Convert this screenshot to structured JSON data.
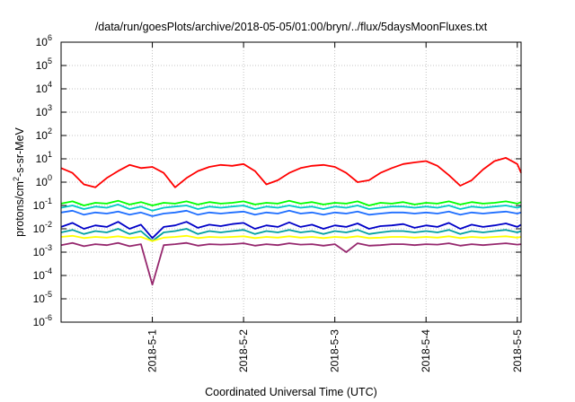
{
  "chart_data": {
    "type": "line",
    "title": "/data/run/goesPlots/archive/2018-05-05/01:00/bryn/../flux/5daysMoonFluxes.txt",
    "xlabel": "Coordinated Universal Time (UTC)",
    "ylabel_parts": [
      "protons/cm",
      "2",
      "-s-sr-MeV"
    ],
    "y_scale": "log",
    "ylim": [
      -6,
      6
    ],
    "y_ticks": [
      {
        "exp": -6,
        "base": "10",
        "sup": "-6"
      },
      {
        "exp": -5,
        "base": "10",
        "sup": "-5"
      },
      {
        "exp": -4,
        "base": "10",
        "sup": "-4"
      },
      {
        "exp": -3,
        "base": "10",
        "sup": "-3"
      },
      {
        "exp": -2,
        "base": "10",
        "sup": "-2"
      },
      {
        "exp": -1,
        "base": "10",
        "sup": "-1"
      },
      {
        "exp": 0,
        "base": "10",
        "sup": "0"
      },
      {
        "exp": 1,
        "base": "10",
        "sup": "1"
      },
      {
        "exp": 2,
        "base": "10",
        "sup": "2"
      },
      {
        "exp": 3,
        "base": "10",
        "sup": "3"
      },
      {
        "exp": 4,
        "base": "10",
        "sup": "4"
      },
      {
        "exp": 5,
        "base": "10",
        "sup": "5"
      },
      {
        "exp": 6,
        "base": "10",
        "sup": "6"
      }
    ],
    "xlim": [
      "2018-04-30 00:00",
      "2018-05-05 01:00"
    ],
    "x_ticks": [
      {
        "x": "2018-05-01 00:00",
        "label": "2018-5-1"
      },
      {
        "x": "2018-05-02 00:00",
        "label": "2018-5-2"
      },
      {
        "x": "2018-05-03 00:00",
        "label": "2018-5-3"
      },
      {
        "x": "2018-05-04 00:00",
        "label": "2018-5-4"
      },
      {
        "x": "2018-05-05 00:00",
        "label": "2018-5-5"
      }
    ],
    "grid": true,
    "x": [
      "2018-04-30 00:00",
      "2018-04-30 03:00",
      "2018-04-30 06:00",
      "2018-04-30 09:00",
      "2018-04-30 12:00",
      "2018-04-30 15:00",
      "2018-04-30 18:00",
      "2018-04-30 21:00",
      "2018-05-01 00:00",
      "2018-05-01 03:00",
      "2018-05-01 06:00",
      "2018-05-01 09:00",
      "2018-05-01 12:00",
      "2018-05-01 15:00",
      "2018-05-01 18:00",
      "2018-05-01 21:00",
      "2018-05-02 00:00",
      "2018-05-02 03:00",
      "2018-05-02 06:00",
      "2018-05-02 09:00",
      "2018-05-02 12:00",
      "2018-05-02 15:00",
      "2018-05-02 18:00",
      "2018-05-02 21:00",
      "2018-05-03 00:00",
      "2018-05-03 03:00",
      "2018-05-03 06:00",
      "2018-05-03 09:00",
      "2018-05-03 12:00",
      "2018-05-03 15:00",
      "2018-05-03 18:00",
      "2018-05-03 21:00",
      "2018-05-04 00:00",
      "2018-05-04 03:00",
      "2018-05-04 06:00",
      "2018-05-04 09:00",
      "2018-05-04 12:00",
      "2018-05-04 15:00",
      "2018-05-04 18:00",
      "2018-05-04 21:00",
      "2018-05-05 00:00",
      "2018-05-05 01:00"
    ],
    "series": [
      {
        "color": "#ff0000",
        "values": [
          4.0,
          2.5,
          0.8,
          0.6,
          1.5,
          3.0,
          5.5,
          4.0,
          4.5,
          2.5,
          0.6,
          1.5,
          3.0,
          4.5,
          5.5,
          5.0,
          6.0,
          3.0,
          0.8,
          1.2,
          2.5,
          4.0,
          5.0,
          5.5,
          4.5,
          2.5,
          1.0,
          1.2,
          2.5,
          4.0,
          6.0,
          7.0,
          8.0,
          5.0,
          2.0,
          0.7,
          1.2,
          3.5,
          8.0,
          11.0,
          6.0,
          2.5
        ]
      },
      {
        "color": "#00ff00",
        "values": [
          0.12,
          0.15,
          0.1,
          0.13,
          0.12,
          0.16,
          0.11,
          0.14,
          0.1,
          0.13,
          0.12,
          0.15,
          0.11,
          0.14,
          0.12,
          0.13,
          0.15,
          0.11,
          0.13,
          0.12,
          0.16,
          0.12,
          0.14,
          0.11,
          0.13,
          0.12,
          0.15,
          0.1,
          0.13,
          0.12,
          0.14,
          0.11,
          0.13,
          0.12,
          0.15,
          0.11,
          0.14,
          0.12,
          0.13,
          0.15,
          0.12,
          0.14
        ]
      },
      {
        "color": "#00c8c8",
        "values": [
          0.08,
          0.1,
          0.07,
          0.09,
          0.08,
          0.11,
          0.07,
          0.09,
          0.06,
          0.08,
          0.09,
          0.1,
          0.07,
          0.09,
          0.08,
          0.09,
          0.1,
          0.07,
          0.09,
          0.08,
          0.1,
          0.08,
          0.09,
          0.07,
          0.09,
          0.08,
          0.1,
          0.07,
          0.08,
          0.09,
          0.09,
          0.08,
          0.09,
          0.08,
          0.1,
          0.07,
          0.09,
          0.08,
          0.09,
          0.1,
          0.08,
          0.09
        ]
      },
      {
        "color": "#1e6eff",
        "values": [
          0.05,
          0.06,
          0.04,
          0.05,
          0.045,
          0.055,
          0.04,
          0.05,
          0.035,
          0.045,
          0.05,
          0.06,
          0.04,
          0.05,
          0.045,
          0.05,
          0.055,
          0.04,
          0.05,
          0.045,
          0.06,
          0.045,
          0.05,
          0.04,
          0.05,
          0.045,
          0.055,
          0.04,
          0.045,
          0.05,
          0.05,
          0.045,
          0.05,
          0.045,
          0.055,
          0.04,
          0.05,
          0.045,
          0.05,
          0.055,
          0.045,
          0.05
        ]
      },
      {
        "color": "#0000c8",
        "values": [
          0.012,
          0.018,
          0.01,
          0.014,
          0.012,
          0.02,
          0.01,
          0.015,
          0.004,
          0.012,
          0.014,
          0.02,
          0.011,
          0.015,
          0.013,
          0.016,
          0.018,
          0.01,
          0.014,
          0.012,
          0.019,
          0.012,
          0.015,
          0.01,
          0.014,
          0.012,
          0.017,
          0.01,
          0.013,
          0.014,
          0.016,
          0.011,
          0.014,
          0.012,
          0.018,
          0.01,
          0.015,
          0.012,
          0.014,
          0.017,
          0.012,
          0.015
        ]
      },
      {
        "color": "#00a0a0",
        "values": [
          0.007,
          0.009,
          0.006,
          0.008,
          0.007,
          0.01,
          0.006,
          0.008,
          0.003,
          0.007,
          0.008,
          0.01,
          0.006,
          0.008,
          0.007,
          0.008,
          0.009,
          0.006,
          0.008,
          0.007,
          0.009,
          0.007,
          0.008,
          0.006,
          0.008,
          0.007,
          0.009,
          0.006,
          0.007,
          0.008,
          0.008,
          0.007,
          0.008,
          0.007,
          0.009,
          0.006,
          0.008,
          0.007,
          0.008,
          0.009,
          0.007,
          0.008
        ]
      },
      {
        "color": "#ffff00",
        "values": [
          0.0045,
          0.005,
          0.004,
          0.0045,
          0.0042,
          0.0048,
          0.004,
          0.0045,
          0.003,
          0.0042,
          0.0045,
          0.005,
          0.004,
          0.0045,
          0.0043,
          0.0045,
          0.0048,
          0.004,
          0.0045,
          0.0042,
          0.0048,
          0.0042,
          0.0045,
          0.004,
          0.0045,
          0.0042,
          0.0048,
          0.004,
          0.0042,
          0.0045,
          0.0045,
          0.0042,
          0.0045,
          0.0042,
          0.0048,
          0.004,
          0.0045,
          0.0042,
          0.0045,
          0.0048,
          0.0042,
          0.0045
        ]
      },
      {
        "color": "#96286e",
        "values": [
          0.002,
          0.0025,
          0.0018,
          0.0022,
          0.002,
          0.0025,
          0.0018,
          0.0022,
          4e-05,
          0.002,
          0.0022,
          0.0025,
          0.0019,
          0.0022,
          0.0021,
          0.0022,
          0.0024,
          0.0019,
          0.0022,
          0.002,
          0.0024,
          0.0021,
          0.0022,
          0.0019,
          0.0022,
          0.001,
          0.0024,
          0.0019,
          0.002,
          0.0022,
          0.0022,
          0.002,
          0.0022,
          0.0021,
          0.0024,
          0.0019,
          0.0022,
          0.002,
          0.0022,
          0.0024,
          0.0021,
          0.0022
        ]
      }
    ]
  }
}
